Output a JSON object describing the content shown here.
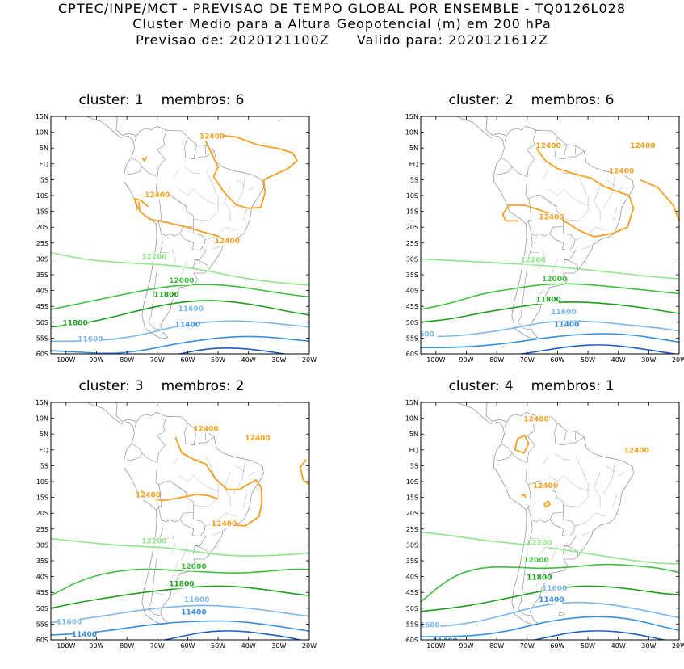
{
  "header": {
    "line1": "CPTEC/INPE/MCT - PREVISAO DE TEMPO GLOBAL POR ENSEMBLE - TQ0126L028",
    "line2": "Cluster Medio para a Altura Geopotencial (m) em 200 hPa",
    "line3_label_a": "Previsao de:",
    "line3_value_a": "2020121100Z",
    "line3_label_b": "Valido para:",
    "line3_value_b": "2020121612Z"
  },
  "axes": {
    "lat_labels": [
      "15N",
      "10N",
      "5N",
      "EQ",
      "5S",
      "10S",
      "15S",
      "20S",
      "25S",
      "30S",
      "35S",
      "40S",
      "45S",
      "50S",
      "55S",
      "60S"
    ],
    "lon_labels": [
      "100W",
      "90W",
      "80W",
      "70W",
      "60W",
      "50W",
      "40W",
      "30W",
      "20W"
    ]
  },
  "colors": {
    "c12400": "#f5a020",
    "c12200": "#8ee68a",
    "c12000": "#3fbf3f",
    "c11800": "#1ea01e",
    "c11600": "#7ab8ec",
    "c11400": "#3a8ee0",
    "c11200": "#1f5fc4",
    "coast": "#9a9a9a"
  },
  "clusters": [
    {
      "label": "cluster:",
      "number": "1",
      "members_label": "membros:",
      "members": "6",
      "contour_labels": [
        {
          "text": "12400",
          "c": "c12400"
        },
        {
          "text": "12400",
          "c": "c12400"
        },
        {
          "text": "12400",
          "c": "c12400"
        },
        {
          "text": "12200",
          "c": "c12200"
        },
        {
          "text": "12000",
          "c": "c12000"
        },
        {
          "text": "11800",
          "c": "c11800"
        },
        {
          "text": "11800",
          "c": "c11800"
        },
        {
          "text": "11600",
          "c": "c11600"
        },
        {
          "text": "11600",
          "c": "c11600"
        },
        {
          "text": "11400",
          "c": "c11400"
        }
      ]
    },
    {
      "label": "cluster:",
      "number": "2",
      "members_label": "membros:",
      "members": "6",
      "contour_labels": [
        {
          "text": "12400",
          "c": "c12400"
        },
        {
          "text": "12400",
          "c": "c12400"
        },
        {
          "text": "12400",
          "c": "c12400"
        },
        {
          "text": "12400",
          "c": "c12400"
        },
        {
          "text": "12200",
          "c": "c12200"
        },
        {
          "text": "12000",
          "c": "c12000"
        },
        {
          "text": "11800",
          "c": "c11800"
        },
        {
          "text": "11600",
          "c": "c11600"
        },
        {
          "text": "600",
          "c": "c11600"
        },
        {
          "text": "11400",
          "c": "c11400"
        }
      ]
    },
    {
      "label": "cluster:",
      "number": "3",
      "members_label": "membros:",
      "members": "2",
      "contour_labels": [
        {
          "text": "12400",
          "c": "c12400"
        },
        {
          "text": "12400",
          "c": "c12400"
        },
        {
          "text": "12400",
          "c": "c12400"
        },
        {
          "text": "12400",
          "c": "c12400"
        },
        {
          "text": "12200",
          "c": "c12200"
        },
        {
          "text": "12000",
          "c": "c12000"
        },
        {
          "text": "11800",
          "c": "c11800"
        },
        {
          "text": "11600",
          "c": "c11600"
        },
        {
          "text": "11600",
          "c": "c11600"
        },
        {
          "text": "11400",
          "c": "c11400"
        },
        {
          "text": "11400",
          "c": "c11400"
        }
      ]
    },
    {
      "label": "cluster:",
      "number": "4",
      "members_label": "membros:",
      "members": "1",
      "contour_labels": [
        {
          "text": "12400",
          "c": "c12400"
        },
        {
          "text": "12400",
          "c": "c12400"
        },
        {
          "text": "12400",
          "c": "c12400"
        },
        {
          "text": "12200",
          "c": "c12200"
        },
        {
          "text": "12000",
          "c": "c12000"
        },
        {
          "text": "11800",
          "c": "c11800"
        },
        {
          "text": "11600",
          "c": "c11600"
        },
        {
          "text": "1600",
          "c": "c11600"
        },
        {
          "text": "11400",
          "c": "c11400"
        },
        {
          "text": "11400",
          "c": "c11400"
        }
      ]
    }
  ]
}
